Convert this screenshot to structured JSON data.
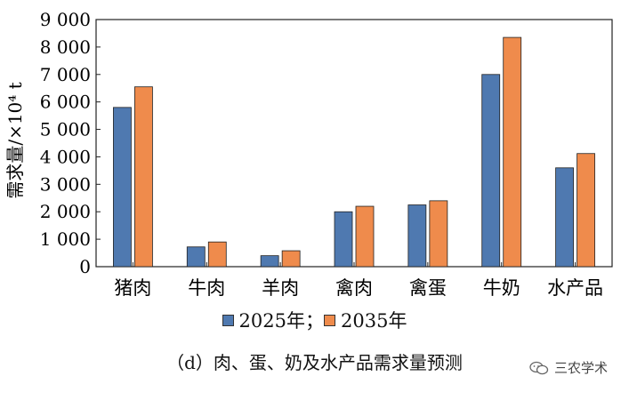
{
  "chart_data": {
    "type": "bar",
    "categories": [
      "猪肉",
      "牛肉",
      "羊肉",
      "禽肉",
      "禽蛋",
      "牛奶",
      "水产品"
    ],
    "series": [
      {
        "name": "2025年；",
        "values": [
          5800,
          720,
          400,
          2000,
          2250,
          7000,
          3600
        ],
        "color": "#4f79b0"
      },
      {
        "name": "2035年",
        "values": [
          6550,
          900,
          580,
          2200,
          2400,
          8350,
          4120
        ],
        "color": "#ef8b4c"
      }
    ],
    "ylabel": "需求量/×10⁴ t",
    "ylim": [
      0,
      9000
    ],
    "yticks": [
      0,
      1000,
      2000,
      3000,
      4000,
      5000,
      6000,
      7000,
      8000,
      9000
    ],
    "ytick_labels": [
      "0",
      "1 000",
      "2 000",
      "3 000",
      "4 000",
      "5 000",
      "6 000",
      "7 000",
      "8 000",
      "9 000"
    ],
    "grid": false,
    "legend_position": "bottom"
  },
  "caption": "（d）肉、蛋、奶及水产品需求量预测",
  "watermark": {
    "text": "三农学术",
    "icon": "wechat-icon"
  }
}
